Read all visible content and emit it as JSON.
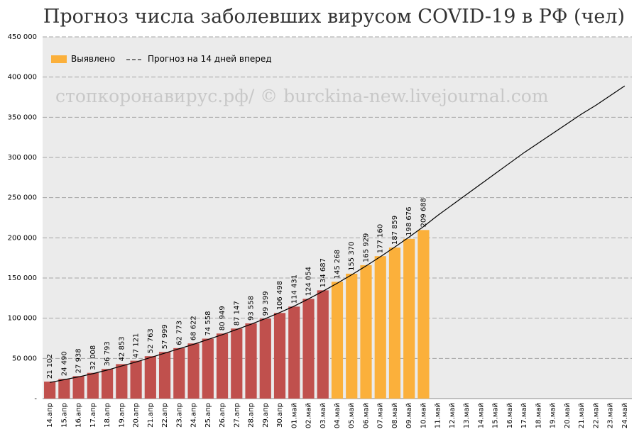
{
  "chart_data": {
    "type": "bar",
    "title": "Прогноз числа заболевших вирусом COVID-19 в РФ (чел)",
    "watermark": "стопкоронавирус.рф/ © burckina-new.livejournal.com",
    "categories": [
      "14.апр",
      "15.апр",
      "16.апр",
      "17.апр",
      "18.апр",
      "19.апр",
      "20.апр",
      "21.апр",
      "22.апр",
      "23.апр",
      "24.апр",
      "25.апр",
      "26.апр",
      "27.апр",
      "28.апр",
      "29.апр",
      "30.апр",
      "01.май",
      "02.май",
      "03.май",
      "04.май",
      "05.май",
      "06.май",
      "07.май",
      "08.май",
      "09.май",
      "10.май",
      "11.май",
      "12.май",
      "13.май",
      "14.май",
      "15.май",
      "16.май",
      "17.май",
      "18.май",
      "19.май",
      "20.май",
      "21.май",
      "22.май",
      "23.май",
      "24.май"
    ],
    "series": [
      {
        "name": "Выявлено",
        "type": "bar",
        "color": "#fbb03b",
        "colors": [
          "#c0504d",
          "#c0504d",
          "#c0504d",
          "#c0504d",
          "#c0504d",
          "#c0504d",
          "#c0504d",
          "#c0504d",
          "#c0504d",
          "#c0504d",
          "#c0504d",
          "#c0504d",
          "#c0504d",
          "#c0504d",
          "#c0504d",
          "#c0504d",
          "#c0504d",
          "#c0504d",
          "#c0504d",
          "#c0504d",
          "#fbb03b",
          "#fbb03b",
          "#fbb03b",
          "#fbb03b",
          "#fbb03b",
          "#fbb03b",
          "#fbb03b",
          null,
          null,
          null,
          null,
          null,
          null,
          null,
          null,
          null,
          null,
          null,
          null,
          null,
          null
        ],
        "values": [
          21102,
          24490,
          27938,
          32008,
          36793,
          42853,
          47121,
          52763,
          57999,
          62773,
          68622,
          74558,
          80949,
          87147,
          93558,
          99399,
          106498,
          114431,
          124054,
          134687,
          145268,
          155370,
          165929,
          177160,
          187859,
          198676,
          209688,
          null,
          null,
          null,
          null,
          null,
          null,
          null,
          null,
          null,
          null,
          null,
          null,
          null,
          null
        ],
        "value_labels": [
          "21 102",
          "24 490",
          "27 938",
          "32 008",
          "36 793",
          "42 853",
          "47 121",
          "52 763",
          "57 999",
          "62 773",
          "68 622",
          "74 558",
          "80 949",
          "87 147",
          "93 558",
          "99 399",
          "106 498",
          "114 431",
          "124 054",
          "134 687",
          "145 268",
          "155 370",
          "165 929",
          "177 160",
          "187 859",
          "198 676",
          "209 688",
          null,
          null,
          null,
          null,
          null,
          null,
          null,
          null,
          null,
          null,
          null,
          null,
          null,
          null
        ]
      },
      {
        "name": "Прогноз на 14 дней вперед",
        "type": "line",
        "color": "#000000",
        "values": [
          20000,
          23500,
          27000,
          31000,
          35500,
          40500,
          45500,
          51000,
          56500,
          62000,
          67500,
          73500,
          79500,
          86000,
          92500,
          99500,
          107000,
          115000,
          124000,
          133500,
          143500,
          154000,
          165000,
          176500,
          188500,
          201000,
          214000,
          228000,
          241000,
          254000,
          267000,
          280000,
          293000,
          306000,
          318000,
          330000,
          342000,
          354000,
          365000,
          377000,
          389000
        ]
      }
    ],
    "ylim": [
      0,
      450000
    ],
    "yticks": [
      {
        "value": 0,
        "label": "-"
      },
      {
        "value": 50000,
        "label": "50 000"
      },
      {
        "value": 100000,
        "label": "100 000"
      },
      {
        "value": 150000,
        "label": "150 000"
      },
      {
        "value": 200000,
        "label": "200 000"
      },
      {
        "value": 250000,
        "label": "250 000"
      },
      {
        "value": 300000,
        "label": "300 000"
      },
      {
        "value": 350000,
        "label": "350 000"
      },
      {
        "value": 400000,
        "label": "400 000"
      },
      {
        "value": 450000,
        "label": "450 000"
      }
    ],
    "grid": true,
    "legend": "top-left"
  }
}
